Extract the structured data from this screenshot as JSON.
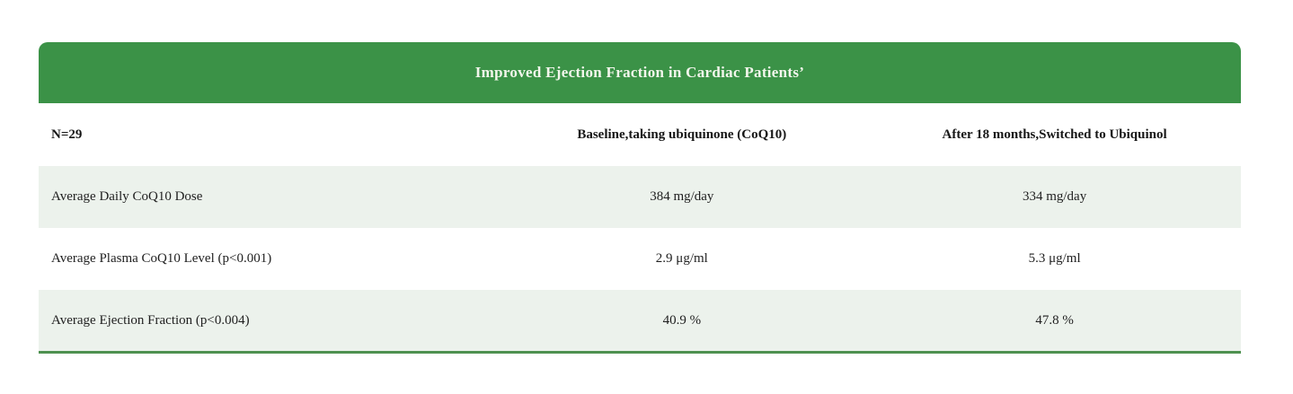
{
  "colors": {
    "header_green": "#3b9247",
    "row_alt_green": "#ecf2ec",
    "bottom_border_green": "#4e9150",
    "title_text": "#f3f6ec",
    "body_text": "#1f1f1f"
  },
  "table": {
    "title": "Improved Ejection Fraction in Cardiac Patients’",
    "columns": [
      "N=29",
      "Baseline,taking ubiquinone (CoQ10)",
      "After 18 months,Switched to Ubiquinol"
    ],
    "rows": [
      {
        "label": "Average Daily CoQ10 Dose",
        "baseline": "384 mg/day",
        "after": "334 mg/day"
      },
      {
        "label": "Average Plasma CoQ10 Level (p<0.001)",
        "baseline": "2.9 μg/ml",
        "after": "5.3 μg/ml"
      },
      {
        "label": "Average Ejection Fraction (p<0.004)",
        "baseline": "40.9 %",
        "after": "47.8 %"
      }
    ]
  },
  "chart_data": {
    "type": "table",
    "title": "Improved Ejection Fraction in Cardiac Patients’",
    "sample_size": "N=29",
    "columns": [
      "N=29",
      "Baseline,taking ubiquinone (CoQ10)",
      "After 18 months,Switched to Ubiquinol"
    ],
    "rows": [
      [
        "Average Daily CoQ10 Dose",
        "384 mg/day",
        "334 mg/day"
      ],
      [
        "Average Plasma CoQ10 Level (p<0.001)",
        "2.9 μg/ml",
        "5.3 μg/ml"
      ],
      [
        "Average Ejection Fraction (p<0.004)",
        "40.9 %",
        "47.8 %"
      ]
    ],
    "numeric_values": {
      "avg_daily_dose_mg_day": [
        384,
        334
      ],
      "avg_plasma_level_ug_ml": [
        2.9,
        5.3
      ],
      "avg_ejection_fraction_pct": [
        40.9,
        47.8
      ]
    },
    "layout": {
      "header_background": "#3b9247",
      "alternating_row_background": "#ecf2ec",
      "bottom_rule": "#4e9150",
      "first_column_align": "left",
      "value_columns_align": "center"
    }
  }
}
